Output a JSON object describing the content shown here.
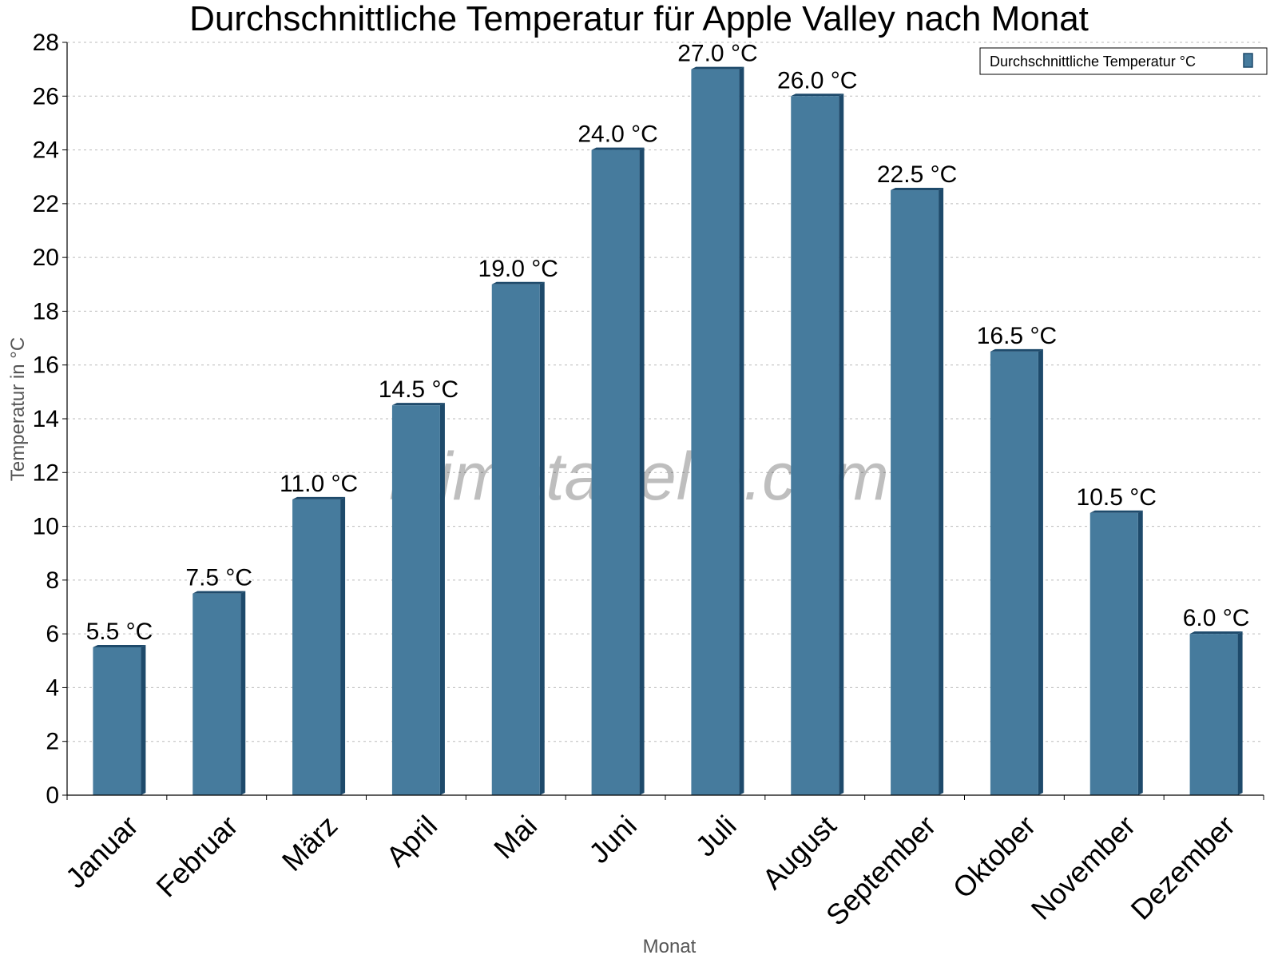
{
  "chart_data": {
    "type": "bar",
    "title": "Durchschnittliche Temperatur für Apple Valley nach Monat",
    "xlabel": "Monat",
    "ylabel": "Temperatur in °C",
    "categories": [
      "Januar",
      "Februar",
      "März",
      "April",
      "Mai",
      "Juni",
      "Juli",
      "August",
      "September",
      "Oktober",
      "November",
      "Dezember"
    ],
    "series": [
      {
        "name": "Durchschnittliche Temperatur °C",
        "values": [
          5.5,
          7.5,
          11.0,
          14.5,
          19.0,
          24.0,
          27.0,
          26.0,
          22.5,
          16.5,
          10.5,
          6.0
        ],
        "labels": [
          "5.5 °C",
          "7.5 °C",
          "11.0 °C",
          "14.5 °C",
          "19.0 °C",
          "24.0 °C",
          "27.0 °C",
          "26.0 °C",
          "22.5 °C",
          "16.5 °C",
          "10.5 °C",
          "6.0 °C"
        ]
      }
    ],
    "ylim": [
      0,
      28
    ],
    "yticks": [
      0,
      2,
      4,
      6,
      8,
      10,
      12,
      14,
      16,
      18,
      20,
      22,
      24,
      26,
      28
    ],
    "grid": true,
    "legend": "top-right",
    "colors": {
      "bar": "#467b9d",
      "bar_dark": "#1e4a6b"
    }
  },
  "watermark": "klimatabelle.com"
}
